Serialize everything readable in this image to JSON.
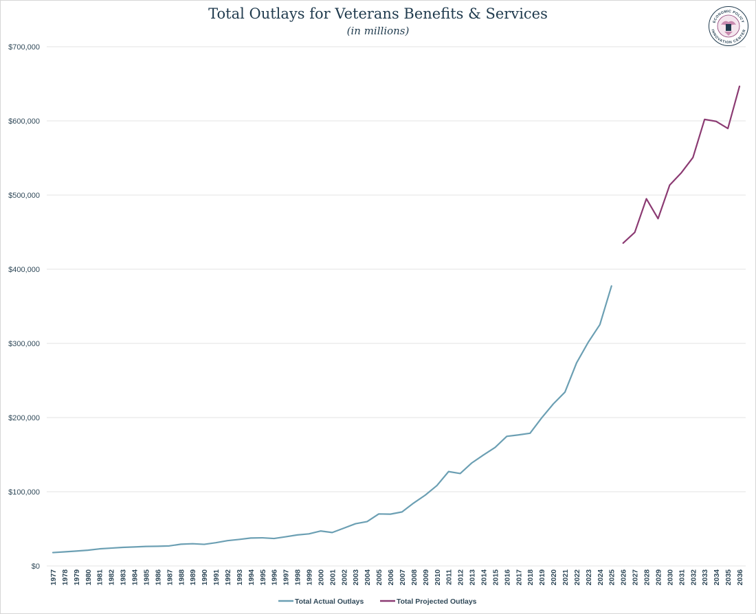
{
  "chart_data": {
    "type": "line",
    "title": "Total Outlays for Veterans Benefits & Services",
    "subtitle": "(in millions)",
    "ylim": [
      0,
      700000
    ],
    "yticks": [
      "$0",
      "$100,000",
      "$200,000",
      "$300,000",
      "$400,000",
      "$500,000",
      "$600,000",
      "$700,000"
    ],
    "x": [
      1977,
      1978,
      1979,
      1980,
      1981,
      1982,
      1983,
      1984,
      1985,
      1986,
      1987,
      1988,
      1989,
      1990,
      1991,
      1992,
      1993,
      1994,
      1995,
      1996,
      1997,
      1998,
      1999,
      2000,
      2001,
      2002,
      2003,
      2004,
      2005,
      2006,
      2007,
      2008,
      2009,
      2010,
      2011,
      2012,
      2013,
      2014,
      2015,
      2016,
      2017,
      2018,
      2019,
      2020,
      2021,
      2022,
      2023,
      2024,
      2025,
      2026,
      2027,
      2028,
      2029,
      2030,
      2031,
      2032,
      2033,
      2034,
      2035,
      2036
    ],
    "series": [
      {
        "name": "Total Actual Outlays",
        "color": "#6b9fb3",
        "values": [
          18000,
          19000,
          20000,
          21200,
          23000,
          24000,
          25000,
          25600,
          26300,
          26500,
          27000,
          29300,
          29900,
          29100,
          31300,
          34100,
          35700,
          37600,
          37900,
          37000,
          39300,
          41800,
          43200,
          47100,
          45000,
          50900,
          56900,
          59800,
          70100,
          69800,
          72800,
          84800,
          95500,
          108400,
          127200,
          124600,
          138900,
          149600,
          159800,
          174700,
          176600,
          178900,
          199600,
          218400,
          234300,
          273800,
          301500,
          325300,
          377400,
          null,
          null,
          null,
          null,
          null,
          null,
          null,
          null,
          null,
          null,
          null
        ]
      },
      {
        "name": "Total Projected Outlays",
        "color": "#8b3a72",
        "values": [
          null,
          null,
          null,
          null,
          null,
          null,
          null,
          null,
          null,
          null,
          null,
          null,
          null,
          null,
          null,
          null,
          null,
          null,
          null,
          null,
          null,
          null,
          null,
          null,
          null,
          null,
          null,
          null,
          null,
          null,
          null,
          null,
          null,
          null,
          null,
          null,
          null,
          null,
          null,
          null,
          null,
          null,
          null,
          null,
          null,
          null,
          null,
          null,
          null,
          435300,
          449700,
          495000,
          468200,
          513400,
          530000,
          550600,
          602000,
          599300,
          589700,
          646600
        ]
      }
    ]
  },
  "logo": {
    "top_text": "ECONOMIC POLICY",
    "bottom_text": "INNOVATION CENTER"
  }
}
